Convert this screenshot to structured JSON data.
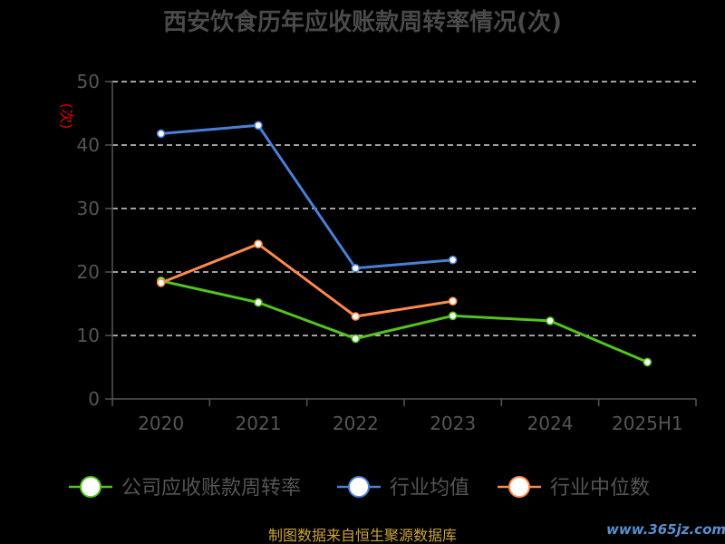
{
  "chart_data": {
    "type": "line",
    "title": "西安饮食历年应收账款周转率情况(次)",
    "ylabel": "(次)",
    "categories": [
      "2020",
      "2021",
      "2022",
      "2023",
      "2024",
      "2025H1"
    ],
    "ylim": [
      0,
      50
    ],
    "yticks": [
      0,
      10,
      20,
      30,
      40,
      50
    ],
    "grid": true,
    "legend": "bottom",
    "series": [
      {
        "name": "公司应收账款周转率",
        "color": "#52c41a",
        "values": [
          18.6,
          15.2,
          9.5,
          13.1,
          12.3,
          5.8
        ]
      },
      {
        "name": "行业均值",
        "color": "#4a7fd8",
        "values": [
          41.8,
          43.1,
          20.6,
          21.9,
          null,
          null
        ]
      },
      {
        "name": "行业中位数",
        "color": "#ff8a4c",
        "values": [
          18.3,
          24.4,
          13.0,
          15.4,
          null,
          null
        ]
      }
    ]
  },
  "footer": {
    "source": "制图数据来自恒生聚源数据库",
    "watermark": "www.365jz.com"
  }
}
